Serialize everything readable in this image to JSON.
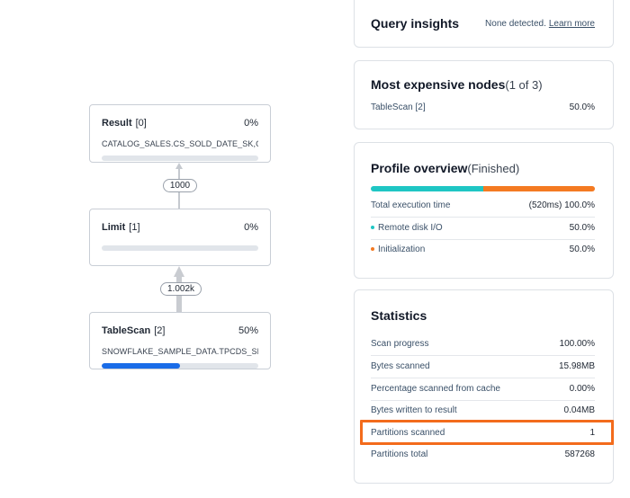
{
  "graph": {
    "nodes": [
      {
        "name": "Result",
        "id": "[0]",
        "percent": "0%",
        "detail": "CATALOG_SALES.CS_SOLD_DATE_SK,C...",
        "progress": 0
      },
      {
        "name": "Limit",
        "id": "[1]",
        "percent": "0%",
        "detail": "",
        "progress": 0
      },
      {
        "name": "TableScan",
        "id": "[2]",
        "percent": "50%",
        "detail": "SNOWFLAKE_SAMPLE_DATA.TPCDS_SF...",
        "progress": 0.5
      }
    ],
    "edges": [
      {
        "label": "1000"
      },
      {
        "label": "1.002k"
      }
    ]
  },
  "query_insights": {
    "title": "Query insights",
    "status": "None detected.",
    "link": "Learn more"
  },
  "expensive_nodes": {
    "title": "Most expensive nodes",
    "count": "(1 of 3)",
    "rows": [
      {
        "label": "TableScan [2]",
        "value": "50.0%"
      }
    ]
  },
  "profile_overview": {
    "title": "Profile overview",
    "status": "(Finished)",
    "bar": [
      {
        "name": "Remote disk I/O",
        "fraction": 0.5,
        "color": "#1fc6c4"
      },
      {
        "name": "Initialization",
        "fraction": 0.5,
        "color": "#f47a22"
      }
    ],
    "total_label": "Total execution time",
    "total_time": "(520ms)",
    "total_value": "100.0%",
    "rows": [
      {
        "label": "Remote disk I/O",
        "value": "50.0%",
        "color": "#1fc6c4"
      },
      {
        "label": "Initialization",
        "value": "50.0%",
        "color": "#f47a22"
      }
    ]
  },
  "statistics": {
    "title": "Statistics",
    "rows": [
      {
        "label": "Scan progress",
        "value": "100.00%"
      },
      {
        "label": "Bytes scanned",
        "value": "15.98MB"
      },
      {
        "label": "Percentage scanned from cache",
        "value": "0.00%"
      },
      {
        "label": "Bytes written to result",
        "value": "0.04MB"
      },
      {
        "label": "Partitions scanned",
        "value": "1"
      },
      {
        "label": "Partitions total",
        "value": "587268"
      }
    ]
  },
  "colors": {
    "highlight": "#f36b1c",
    "progress": "#1a6ce8"
  }
}
